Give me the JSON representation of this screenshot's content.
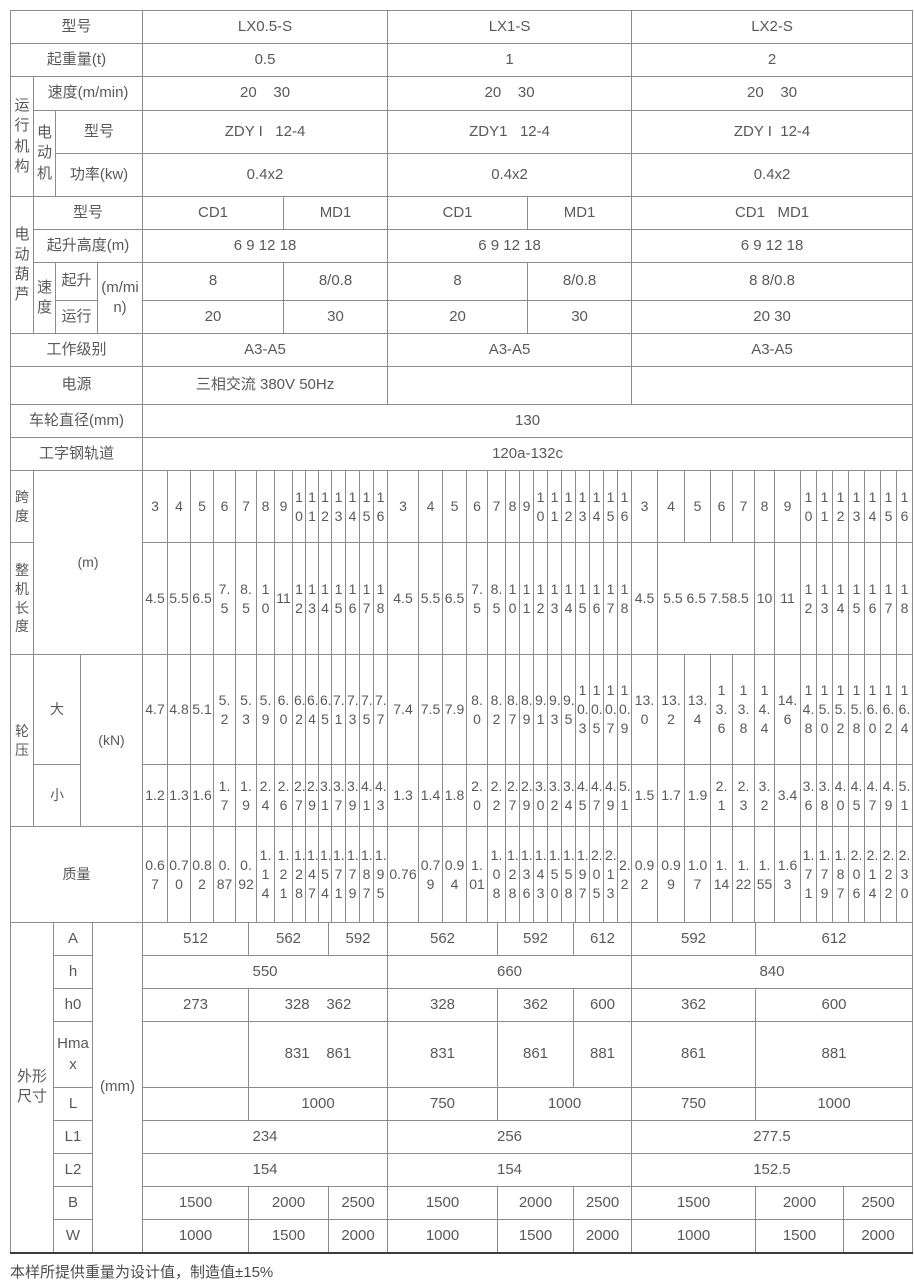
{
  "spec": {
    "labels": {
      "model": "型号",
      "capacity": "起重量(t)",
      "travel_group": "运行机构",
      "speed": "速度(m/min)",
      "motor_group": "电动机",
      "motor_model": "型号",
      "motor_power": "功率(kw)",
      "hoist_group": "电动葫芦",
      "hoist_model": "型号",
      "lift_height": "起升高度(m)",
      "speed_group": "速度",
      "lifting": "起升",
      "travelling": "运行",
      "speed_unit": "(m/min)",
      "duty": "工作级别",
      "power": "电源",
      "wheel_dia": "车轮直径(mm)",
      "rail": "工字钢轨道"
    },
    "models": [
      "LX0.5-S",
      "LX1-S",
      "LX2-S"
    ],
    "capacity": [
      "0.5",
      "1",
      "2"
    ],
    "speed": [
      "20    30",
      "20    30",
      "20    30"
    ],
    "motor_model": [
      "ZDY I   12-4",
      "ZDY1   12-4",
      "ZDY I  12-4"
    ],
    "motor_power": [
      "0.4x2",
      "0.4x2",
      "0.4x2"
    ],
    "hoist_model": {
      "lx05": [
        "CD1",
        "MD1"
      ],
      "lx1": [
        "CD1",
        "MD1"
      ],
      "lx2": "CD1   MD1"
    },
    "lift_height": [
      "6 9 12 18",
      "6 9 12 18",
      "6 9 12 18"
    ],
    "lift_speed": {
      "lx05": [
        "8",
        "8/0.8"
      ],
      "lx1": [
        "8",
        "8/0.8"
      ],
      "lx2": "8 8/0.8"
    },
    "travel_run": {
      "lx05": [
        "20",
        "30"
      ],
      "lx1": [
        "20",
        "30"
      ],
      "lx2": "20 30"
    },
    "duty": [
      "A3-A5",
      "A3-A5",
      "A3-A5"
    ],
    "power_supply": [
      "三相交流 380V 50Hz",
      "",
      ""
    ],
    "wheel_dia": "130",
    "rail": "120a-132c"
  },
  "mid": {
    "labels": {
      "span": "跨度",
      "length": "整机长度",
      "unit_m": "(m)",
      "load": "轮压",
      "max": "大",
      "min": "小",
      "unit_kn": "(kN)",
      "mass": "质量"
    },
    "span": {
      "lx05": [
        "3",
        "4",
        "5",
        "6",
        "7",
        "8",
        "9",
        "10",
        "11",
        "12",
        "13",
        "14",
        "15",
        "16"
      ],
      "lx1": [
        "3",
        "4",
        "5",
        "6",
        "7",
        "8",
        "9",
        "10",
        "11",
        "12",
        "13",
        "14",
        "15",
        "16"
      ],
      "lx2": [
        "3",
        "4",
        "5",
        "6",
        "7",
        "8",
        "9",
        "10",
        "11",
        "12",
        "13",
        "14",
        "15",
        "16"
      ]
    },
    "length": {
      "lx05": [
        "4.5",
        "5.5",
        "6.5",
        "7.5",
        "8.5",
        "10",
        "11",
        "12",
        "13",
        "14",
        "15",
        "16",
        "17",
        "18"
      ],
      "lx1": [
        "4.5",
        "5.5",
        "6.5",
        "7.5",
        "8.5",
        "10",
        "11",
        "12",
        "13",
        "14",
        "15",
        "16",
        "17",
        "18"
      ],
      "lx2": [
        "4.5",
        {
          "t": "5.5 6.5 7.58.5",
          "cs": 4
        },
        "10",
        "11",
        "12",
        "13",
        "14",
        "15",
        "16",
        "17",
        "18"
      ]
    },
    "load_max": {
      "lx05": [
        "4.7",
        "4.8",
        "5.1",
        "5.2",
        "5.3",
        "5.9",
        "6.0",
        "6.2",
        "6.4",
        "6.5",
        "7.1",
        "7.3",
        "7.5",
        "7.7"
      ],
      "lx1": [
        "7.4",
        "7.5",
        "7.9",
        "8.0",
        "8.2",
        "8.7",
        "8.9",
        "9.1",
        "9.3",
        "9.5",
        "10.3",
        "10.5",
        "10.7",
        "10.9"
      ],
      "lx2": [
        "13.0",
        "13.2",
        "13.4",
        "13.6",
        "13.8",
        "14.4",
        "14.6",
        "14.8",
        "15.0",
        "15.2",
        "15.8",
        "16.0",
        "16.2",
        "16.4"
      ]
    },
    "load_min": {
      "lx05": [
        "1.2",
        "1.3",
        "1.6",
        "1.7",
        "1.9",
        "2.4",
        "2.6",
        "2.7",
        "2.9",
        "3.1",
        "3.7",
        "3.9",
        "4.1",
        "4.3"
      ],
      "lx1": [
        "1.3",
        "1.4",
        "1.8",
        "2.0",
        "2.2",
        "2.7",
        "2.9",
        "3.0",
        "3.2",
        "3.4",
        "4.5",
        "4.7",
        "4.9",
        "5.1"
      ],
      "lx2": [
        "1.5",
        "1.7",
        "1.9",
        "2.1",
        "2.3",
        "3.2",
        "3.4",
        "3.6",
        "3.8",
        "4.0",
        "4.5",
        "4.7",
        "4.9",
        "5.1"
      ]
    },
    "mass": {
      "lx05": [
        "0.67",
        "0.70",
        "0.82",
        "0.87",
        "0.92",
        "1.14",
        "1.21",
        "1.28",
        "1.47",
        "1.54",
        "1.71",
        "1.79",
        "1.87",
        "1.95"
      ],
      "lx1": [
        "0.76",
        "0.79",
        "0.94",
        "1.01",
        "1.08",
        "1.28",
        "1.36",
        "1.43",
        "1.50",
        "1.58",
        "1.97",
        "2.05",
        "2.13",
        "2.2"
      ],
      "lx2": [
        "0.92",
        "0.99",
        "1.07",
        "1.14",
        "1.22",
        "1.55",
        "1.63",
        "1.71",
        "1.79",
        "1.87",
        "2.06",
        "2.14",
        "2.22",
        "2.30"
      ]
    }
  },
  "dims": {
    "labels": {
      "group": "外形尺寸",
      "unit": "(mm)"
    },
    "rows": [
      "A",
      "h",
      "h0",
      "Hmax",
      "L",
      "L1",
      "L2",
      "B",
      "W"
    ],
    "A": {
      "lx05": [
        "512",
        "562",
        "592"
      ],
      "lx1": [
        "562",
        "592",
        "612"
      ],
      "lx2": [
        "592",
        "612"
      ]
    },
    "h": [
      "550",
      "660",
      "840"
    ],
    "h0": {
      "lx05": [
        "273",
        "328    362"
      ],
      "lx1": [
        "328",
        "362",
        "600"
      ],
      "lx2": [
        "362",
        "600"
      ]
    },
    "Hmax": {
      "lx05": [
        "",
        "831    861"
      ],
      "lx1": [
        "831",
        "861",
        "881"
      ],
      "lx2": [
        "861",
        "881"
      ]
    },
    "L": {
      "lx05": [
        "",
        "1000"
      ],
      "lx1": [
        "750",
        "1000"
      ],
      "lx2": [
        "750",
        "1000"
      ]
    },
    "L1": [
      "234",
      "256",
      "277.5"
    ],
    "L2": [
      "154",
      "154",
      "152.5"
    ],
    "B": {
      "lx05": [
        "1500",
        "2000",
        "2500"
      ],
      "lx1": [
        "1500",
        "2000",
        "2500"
      ],
      "lx2": [
        "1500",
        "2000",
        "2500"
      ]
    },
    "W": {
      "lx05": [
        "1000",
        "1500",
        "2000"
      ],
      "lx1": [
        "1000",
        "1500",
        "2000"
      ],
      "lx2": [
        "1000",
        "1500",
        "2000"
      ]
    }
  },
  "footer_note": "本样所提供重量为设计值，制造值±15%"
}
